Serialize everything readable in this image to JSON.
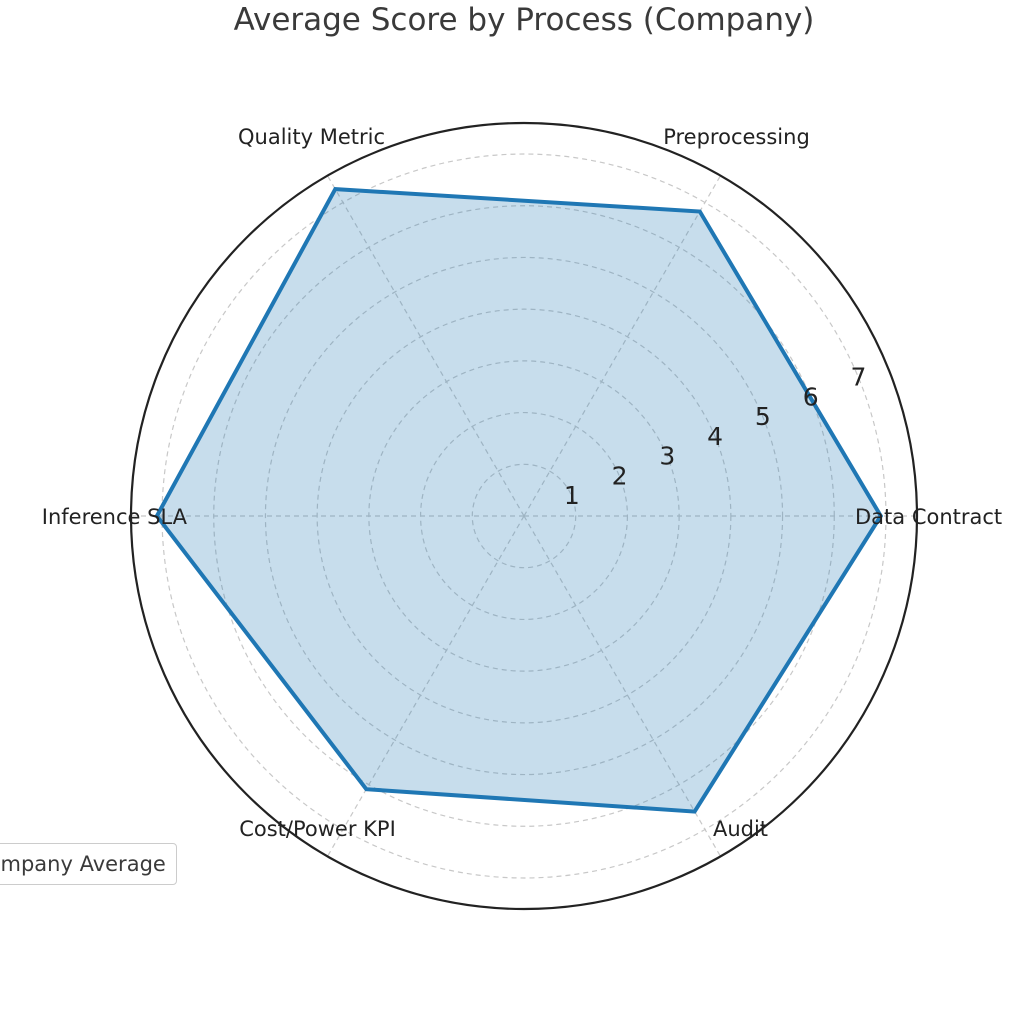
{
  "chart_data": {
    "type": "radar",
    "title": "Average Score by Process (Company)",
    "categories": [
      "Data Contract",
      "Preprocessing",
      "Quality Metric",
      "Inference SLA",
      "Cost/Power KPI",
      "Audit"
    ],
    "series": [
      {
        "name": "Company Average",
        "values": [
          6.9,
          6.8,
          7.3,
          7.1,
          6.1,
          6.6
        ]
      }
    ],
    "rlim": [
      0,
      7.6
    ],
    "radial_ticks": [
      "1",
      "2",
      "3",
      "4",
      "5",
      "6",
      "7"
    ],
    "grid": true,
    "legend_position": "lower-left",
    "colors": {
      "line": "#1f77b4",
      "fill": "#1f77b4",
      "grid": "#c8c8c8",
      "spine": "#222222",
      "text": "#222222"
    }
  }
}
